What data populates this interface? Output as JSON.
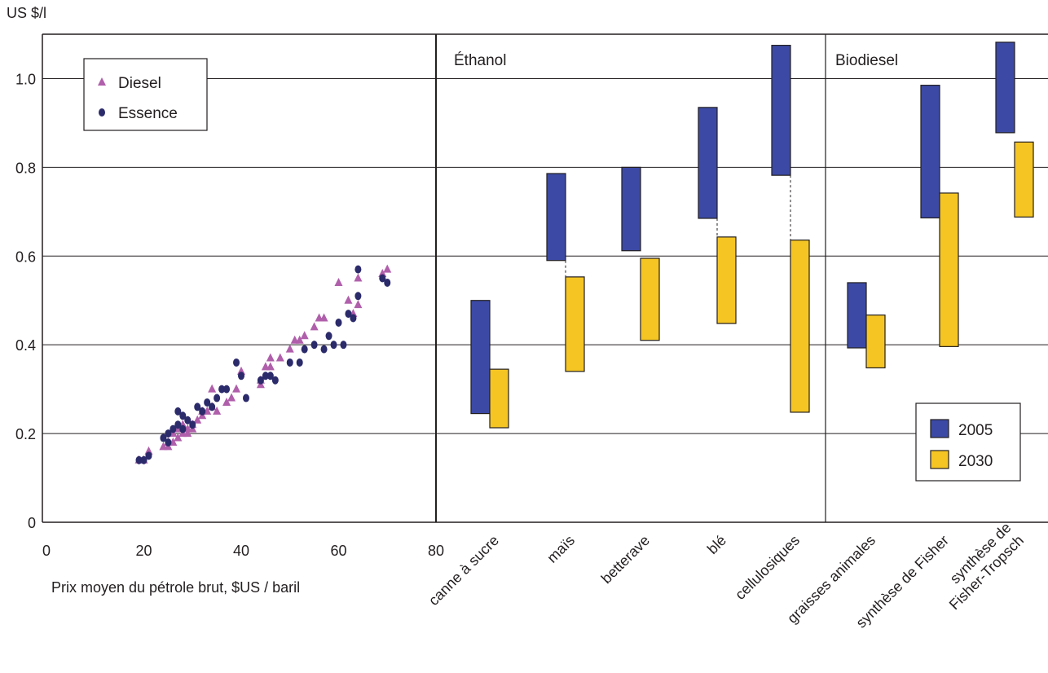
{
  "chart_data": {
    "type": "scatter",
    "ylabel": "US $/l",
    "xlabel": "Prix moyen du pétrole brut, $US / baril",
    "ylim": [
      0,
      1.1
    ],
    "yticks": [
      "0",
      "0.2",
      "0.4",
      "0.6",
      "0.8",
      "1.0"
    ],
    "yticks_values": [
      0,
      0.2,
      0.4,
      0.6,
      0.8,
      1.0
    ],
    "xlim": [
      0,
      80
    ],
    "xticks": [
      "0",
      "20",
      "40",
      "60",
      "80"
    ],
    "xticks_values": [
      0,
      20,
      40,
      60,
      80
    ],
    "grid": true,
    "scatter_legend": {
      "placement": "top-left",
      "items": [
        {
          "label": "Diesel",
          "marker": "triangle",
          "color": "#b05fab"
        },
        {
          "label": "Essence",
          "marker": "circle",
          "color": "#2b2a6b"
        }
      ]
    },
    "scatter_series": [
      {
        "name": "Diesel",
        "color": "#b05fab",
        "marker": "triangle",
        "points": [
          [
            19,
            0.14
          ],
          [
            20,
            0.14
          ],
          [
            21,
            0.16
          ],
          [
            24,
            0.17
          ],
          [
            25,
            0.18
          ],
          [
            25,
            0.17
          ],
          [
            26,
            0.18
          ],
          [
            26,
            0.2
          ],
          [
            27,
            0.19
          ],
          [
            27,
            0.21
          ],
          [
            28,
            0.2
          ],
          [
            28,
            0.22
          ],
          [
            29,
            0.21
          ],
          [
            29,
            0.2
          ],
          [
            30,
            0.22
          ],
          [
            30,
            0.21
          ],
          [
            31,
            0.23
          ],
          [
            32,
            0.24
          ],
          [
            32,
            0.25
          ],
          [
            33,
            0.25
          ],
          [
            34,
            0.26
          ],
          [
            34,
            0.3
          ],
          [
            35,
            0.25
          ],
          [
            37,
            0.27
          ],
          [
            38,
            0.28
          ],
          [
            39,
            0.3
          ],
          [
            40,
            0.34
          ],
          [
            44,
            0.31
          ],
          [
            44,
            0.32
          ],
          [
            45,
            0.35
          ],
          [
            46,
            0.37
          ],
          [
            46,
            0.35
          ],
          [
            48,
            0.37
          ],
          [
            50,
            0.39
          ],
          [
            51,
            0.41
          ],
          [
            52,
            0.41
          ],
          [
            53,
            0.42
          ],
          [
            55,
            0.44
          ],
          [
            56,
            0.46
          ],
          [
            57,
            0.46
          ],
          [
            60,
            0.54
          ],
          [
            62,
            0.5
          ],
          [
            63,
            0.47
          ],
          [
            64,
            0.49
          ],
          [
            64,
            0.55
          ],
          [
            69,
            0.56
          ],
          [
            70,
            0.57
          ]
        ]
      },
      {
        "name": "Essence",
        "color": "#2b2a6b",
        "marker": "circle",
        "points": [
          [
            19,
            0.14
          ],
          [
            20,
            0.14
          ],
          [
            21,
            0.15
          ],
          [
            24,
            0.19
          ],
          [
            25,
            0.2
          ],
          [
            25,
            0.18
          ],
          [
            26,
            0.21
          ],
          [
            27,
            0.25
          ],
          [
            27,
            0.22
          ],
          [
            28,
            0.24
          ],
          [
            28,
            0.21
          ],
          [
            29,
            0.23
          ],
          [
            30,
            0.22
          ],
          [
            31,
            0.26
          ],
          [
            32,
            0.25
          ],
          [
            33,
            0.27
          ],
          [
            34,
            0.26
          ],
          [
            35,
            0.28
          ],
          [
            36,
            0.3
          ],
          [
            37,
            0.3
          ],
          [
            39,
            0.36
          ],
          [
            40,
            0.33
          ],
          [
            41,
            0.28
          ],
          [
            44,
            0.32
          ],
          [
            45,
            0.33
          ],
          [
            46,
            0.33
          ],
          [
            47,
            0.32
          ],
          [
            50,
            0.36
          ],
          [
            52,
            0.36
          ],
          [
            53,
            0.39
          ],
          [
            55,
            0.4
          ],
          [
            57,
            0.39
          ],
          [
            58,
            0.42
          ],
          [
            59,
            0.4
          ],
          [
            60,
            0.45
          ],
          [
            61,
            0.4
          ],
          [
            62,
            0.47
          ],
          [
            63,
            0.46
          ],
          [
            64,
            0.51
          ],
          [
            64,
            0.57
          ],
          [
            69,
            0.55
          ],
          [
            70,
            0.54
          ]
        ]
      }
    ],
    "range_panels": [
      {
        "label": "Éthanol",
        "categories": [
          {
            "label": "canne à sucre",
            "y2005": [
              0.245,
              0.5
            ],
            "y2030": [
              0.213,
              0.345
            ],
            "connector": false
          },
          {
            "label": "maïs",
            "y2005": [
              0.59,
              0.786
            ],
            "y2030": [
              0.34,
              0.553
            ],
            "connector": true
          },
          {
            "label": "betterave",
            "y2005": [
              0.612,
              0.8
            ],
            "y2030": [
              0.41,
              0.595
            ],
            "connector": false
          },
          {
            "label": "blé",
            "y2005": [
              0.685,
              0.935
            ],
            "y2030": [
              0.448,
              0.643
            ],
            "connector": true
          },
          {
            "label": "cellulosiques",
            "y2005": [
              0.782,
              1.075
            ],
            "y2030": [
              0.248,
              0.636
            ],
            "connector": true
          }
        ]
      },
      {
        "label": "Biodiesel",
        "categories": [
          {
            "label": "graisses animales",
            "y2005": [
              0.393,
              0.54
            ],
            "y2030": [
              0.348,
              0.467
            ],
            "connector": false
          },
          {
            "label": "synthèse de Fisher",
            "y2005": [
              0.686,
              0.985
            ],
            "y2030": [
              0.396,
              0.742
            ],
            "connector": false
          },
          {
            "label": "synthèse de Fisher-Tropsch",
            "label_lines": [
              "synthèse de",
              "Fisher-Tropsch"
            ],
            "y2005": [
              0.878,
              1.082
            ],
            "y2030": [
              0.688,
              0.857
            ],
            "connector": false
          }
        ]
      }
    ],
    "range_legend": {
      "placement": "bottom-right",
      "items": [
        {
          "label": "2005",
          "color": "#3c4aa5"
        },
        {
          "label": "2030",
          "color": "#f5c524"
        }
      ]
    }
  }
}
